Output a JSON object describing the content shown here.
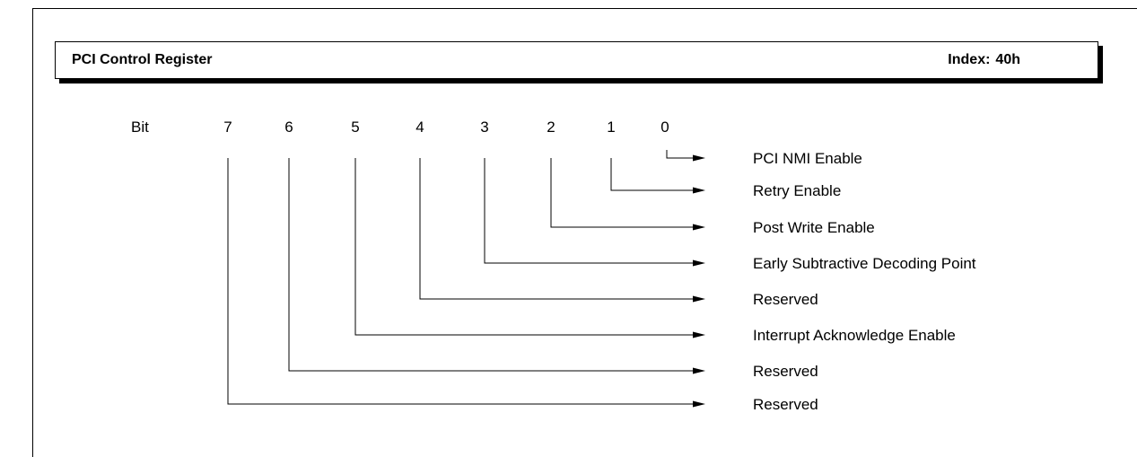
{
  "header": {
    "title": "PCI Control Register",
    "index_label": "Index:",
    "index_value": "40h"
  },
  "bit_label": "Bit",
  "bits": [
    {
      "bit": "7",
      "description": "Reserved"
    },
    {
      "bit": "6",
      "description": "Reserved"
    },
    {
      "bit": "5",
      "description": "Interrupt Acknowledge Enable"
    },
    {
      "bit": "4",
      "description": "Reserved"
    },
    {
      "bit": "3",
      "description": "Early Subtractive Decoding Point"
    },
    {
      "bit": "2",
      "description": "Post Write Enable"
    },
    {
      "bit": "1",
      "description": "Retry Enable"
    },
    {
      "bit": "0",
      "description": "PCI NMI Enable"
    }
  ]
}
